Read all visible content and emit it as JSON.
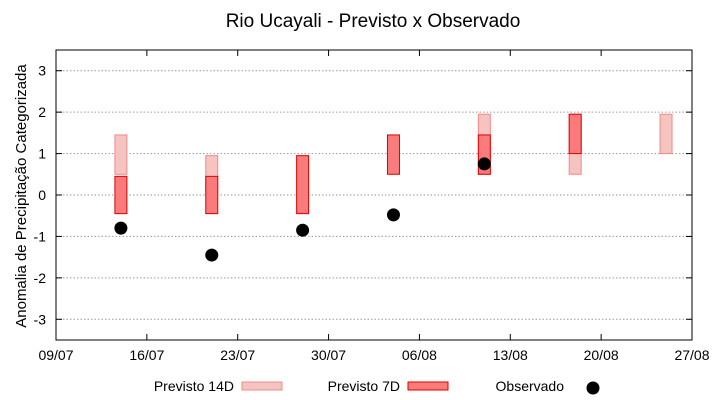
{
  "chart_data": {
    "type": "bar",
    "title": "Rio Ucayali - Previsto x Observado",
    "ylabel": "Anomalia de Precipitação Categorizada",
    "xlabel": "",
    "xlim": [
      "2025-07-09",
      "2025-08-27"
    ],
    "ylim": [
      -3.5,
      3.5
    ],
    "x_ticks": [
      "09/07",
      "16/07",
      "23/07",
      "30/07",
      "06/08",
      "13/08",
      "20/08",
      "27/08"
    ],
    "y_ticks": [
      -3,
      -2,
      -1,
      0,
      1,
      2,
      3
    ],
    "grid": true,
    "legend": "bottom",
    "series": [
      {
        "name": "Previsto 14D",
        "kind": "range-bar",
        "color": "#f6c4c0",
        "stroke": "#f08a8a",
        "points": [
          {
            "x": "2025-07-14",
            "low": 0.5,
            "high": 1.45
          },
          {
            "x": "2025-07-21",
            "low": 0.0,
            "high": 0.95
          },
          {
            "x": "2025-08-11",
            "low": 0.5,
            "high": 1.95
          },
          {
            "x": "2025-08-18",
            "low": 0.5,
            "high": 1.95
          },
          {
            "x": "2025-08-25",
            "low": 1.0,
            "high": 1.95
          }
        ]
      },
      {
        "name": "Previsto 7D",
        "kind": "range-bar",
        "color": "#fa7b7b",
        "stroke": "#e00000",
        "points": [
          {
            "x": "2025-07-14",
            "low": -0.45,
            "high": 0.45
          },
          {
            "x": "2025-07-21",
            "low": -0.45,
            "high": 0.45
          },
          {
            "x": "2025-07-28",
            "low": -0.45,
            "high": 0.95
          },
          {
            "x": "2025-08-04",
            "low": 0.5,
            "high": 1.45
          },
          {
            "x": "2025-08-11",
            "low": 0.5,
            "high": 1.45
          },
          {
            "x": "2025-08-18",
            "low": 1.0,
            "high": 1.95
          }
        ]
      },
      {
        "name": "Observado",
        "kind": "point",
        "color": "#000000",
        "points": [
          {
            "x": "2025-07-14",
            "y": -0.8
          },
          {
            "x": "2025-07-21",
            "y": -1.45
          },
          {
            "x": "2025-07-28",
            "y": -0.85
          },
          {
            "x": "2025-08-04",
            "y": -0.48
          },
          {
            "x": "2025-08-11",
            "y": 0.75
          }
        ]
      }
    ]
  }
}
